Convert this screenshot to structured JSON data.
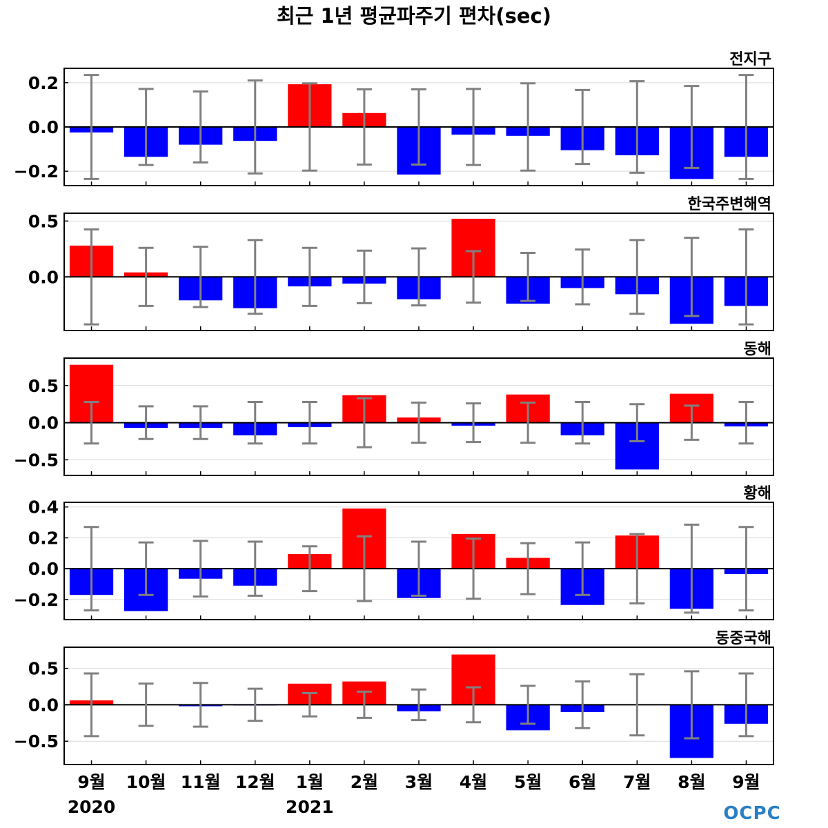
{
  "title": "최근 1년 평균파주기 편차(sec)",
  "logo": "OCPC",
  "colors": {
    "positive": "#ff0000",
    "negative": "#0000ff",
    "errorbar": "#808080",
    "grid": "#d9d9d9",
    "zero": "#000000"
  },
  "chart_data": {
    "type": "bar",
    "categories": [
      "9월",
      "10월",
      "11월",
      "12월",
      "1월",
      "2월",
      "3월",
      "4월",
      "5월",
      "6월",
      "7월",
      "8월",
      "9월"
    ],
    "year_labels": [
      {
        "index": 0,
        "label": "2020"
      },
      {
        "index": 4,
        "label": "2021"
      }
    ],
    "panels": [
      {
        "name": "전지구",
        "ylim": [
          -0.265,
          0.265
        ],
        "yticks": [
          0.2,
          0.0,
          -0.2
        ],
        "ytick_labels": [
          "0.2",
          "0.0",
          "−0.2"
        ],
        "values": [
          -0.025,
          -0.135,
          -0.08,
          -0.063,
          0.193,
          0.063,
          -0.215,
          -0.035,
          -0.04,
          -0.105,
          -0.128,
          -0.235,
          -0.135
        ],
        "errors": [
          0.235,
          0.172,
          0.16,
          0.21,
          0.197,
          0.17,
          0.17,
          0.172,
          0.197,
          0.167,
          0.207,
          0.185,
          0.235
        ]
      },
      {
        "name": "한국주변해역",
        "ylim": [
          -0.48,
          0.57
        ],
        "yticks": [
          0.5,
          0.0
        ],
        "ytick_labels": [
          "0.5",
          "0.0"
        ],
        "values": [
          0.28,
          0.04,
          -0.21,
          -0.28,
          -0.085,
          -0.06,
          -0.2,
          0.52,
          -0.24,
          -0.1,
          -0.155,
          -0.42,
          -0.26
        ],
        "errors": [
          0.425,
          0.26,
          0.27,
          0.33,
          0.26,
          0.235,
          0.255,
          0.23,
          0.215,
          0.245,
          0.33,
          0.35,
          0.425
        ]
      },
      {
        "name": "동해",
        "ylim": [
          -0.71,
          0.87
        ],
        "yticks": [
          0.5,
          0.0,
          -0.5
        ],
        "ytick_labels": [
          "0.5",
          "0.0",
          "−0.5"
        ],
        "values": [
          0.78,
          -0.07,
          -0.07,
          -0.17,
          -0.06,
          0.37,
          0.07,
          -0.04,
          0.38,
          -0.17,
          -0.63,
          0.39,
          -0.05
        ],
        "errors": [
          0.28,
          0.22,
          0.22,
          0.28,
          0.28,
          0.33,
          0.27,
          0.26,
          0.27,
          0.28,
          0.25,
          0.23,
          0.28
        ]
      },
      {
        "name": "황해",
        "ylim": [
          -0.33,
          0.43
        ],
        "yticks": [
          0.4,
          0.2,
          0.0,
          -0.2
        ],
        "ytick_labels": [
          "0.4",
          "0.2",
          "0.0",
          "−0.2"
        ],
        "values": [
          -0.17,
          -0.275,
          -0.065,
          -0.11,
          0.095,
          0.39,
          -0.19,
          0.225,
          0.07,
          -0.235,
          0.215,
          -0.26,
          -0.035
        ],
        "errors": [
          0.27,
          0.17,
          0.18,
          0.175,
          0.145,
          0.21,
          0.175,
          0.195,
          0.165,
          0.17,
          0.225,
          0.285,
          0.27
        ]
      },
      {
        "name": "동중국해",
        "ylim": [
          -0.82,
          0.79
        ],
        "yticks": [
          0.5,
          0.0,
          -0.5
        ],
        "ytick_labels": [
          "0.5",
          "0.0",
          "−0.5"
        ],
        "values": [
          0.06,
          0.0,
          -0.02,
          -0.01,
          0.29,
          0.32,
          -0.09,
          0.69,
          -0.35,
          -0.1,
          0.0,
          -0.73,
          -0.26
        ],
        "errors": [
          0.43,
          0.29,
          0.3,
          0.22,
          0.16,
          0.18,
          0.21,
          0.24,
          0.26,
          0.32,
          0.42,
          0.46,
          0.43
        ]
      }
    ]
  }
}
